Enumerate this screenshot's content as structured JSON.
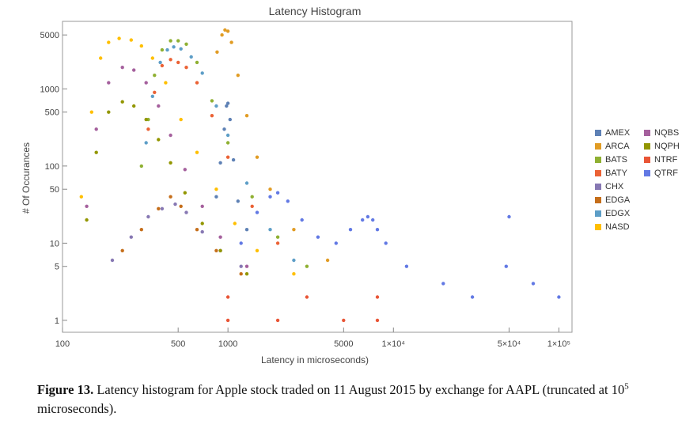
{
  "chart_data": {
    "type": "scatter",
    "title": "Latency Histogram",
    "xlabel": "Latency in microseconds)",
    "ylabel": "# Of Occurances",
    "x_scale": "log",
    "y_scale": "log",
    "xlim": [
      100,
      120000
    ],
    "ylim": [
      0.7,
      7500
    ],
    "x_ticks": [
      {
        "value": 100,
        "label": "100"
      },
      {
        "value": 500,
        "label": "500"
      },
      {
        "value": 1000,
        "label": "1000"
      },
      {
        "value": 5000,
        "label": "5000"
      },
      {
        "value": 10000,
        "label": "1×10⁴"
      },
      {
        "value": 50000,
        "label": "5×10⁴"
      },
      {
        "value": 100000,
        "label": "1×10⁵"
      }
    ],
    "y_ticks": [
      {
        "value": 1,
        "label": "1"
      },
      {
        "value": 5,
        "label": "5"
      },
      {
        "value": 10,
        "label": "10"
      },
      {
        "value": 50,
        "label": "50"
      },
      {
        "value": 100,
        "label": "100"
      },
      {
        "value": 500,
        "label": "500"
      },
      {
        "value": 1000,
        "label": "1000"
      },
      {
        "value": 5000,
        "label": "5000"
      }
    ],
    "grid": false,
    "legend_position": "right",
    "series": [
      {
        "name": "AMEX",
        "color": "#5e81b5",
        "points": [
          [
            850,
            40
          ],
          [
            900,
            110
          ],
          [
            950,
            300
          ],
          [
            980,
            600
          ],
          [
            1000,
            650
          ],
          [
            1030,
            400
          ],
          [
            1080,
            120
          ],
          [
            1150,
            35
          ],
          [
            1300,
            15
          ]
        ]
      },
      {
        "name": "ARCA",
        "color": "#e19c24",
        "points": [
          [
            860,
            3000
          ],
          [
            920,
            5000
          ],
          [
            960,
            5800
          ],
          [
            1000,
            5600
          ],
          [
            1050,
            4000
          ],
          [
            1150,
            1500
          ],
          [
            1300,
            450
          ],
          [
            1500,
            130
          ],
          [
            1800,
            50
          ],
          [
            2500,
            15
          ],
          [
            4000,
            6
          ]
        ]
      },
      {
        "name": "BATS",
        "color": "#8fb032",
        "points": [
          [
            300,
            100
          ],
          [
            330,
            400
          ],
          [
            360,
            1500
          ],
          [
            400,
            3200
          ],
          [
            450,
            4200
          ],
          [
            500,
            4200
          ],
          [
            560,
            3800
          ],
          [
            650,
            2200
          ],
          [
            800,
            700
          ],
          [
            1000,
            200
          ],
          [
            1400,
            40
          ],
          [
            2000,
            12
          ],
          [
            3000,
            5
          ]
        ]
      },
      {
        "name": "BATY",
        "color": "#eb6235",
        "points": [
          [
            330,
            300
          ],
          [
            360,
            900
          ],
          [
            400,
            2000
          ],
          [
            450,
            2400
          ],
          [
            500,
            2200
          ],
          [
            560,
            1900
          ],
          [
            650,
            1200
          ],
          [
            800,
            450
          ],
          [
            1000,
            130
          ],
          [
            1400,
            30
          ],
          [
            2000,
            10
          ]
        ]
      },
      {
        "name": "CHX",
        "color": "#8778b3",
        "points": [
          [
            200,
            6
          ],
          [
            260,
            12
          ],
          [
            330,
            22
          ],
          [
            400,
            28
          ],
          [
            480,
            32
          ],
          [
            560,
            25
          ],
          [
            700,
            14
          ],
          [
            900,
            8
          ],
          [
            1200,
            5
          ]
        ]
      },
      {
        "name": "EDGA",
        "color": "#c56e1a",
        "points": [
          [
            230,
            8
          ],
          [
            300,
            15
          ],
          [
            380,
            28
          ],
          [
            450,
            40
          ],
          [
            520,
            30
          ],
          [
            650,
            15
          ],
          [
            850,
            8
          ],
          [
            1200,
            4
          ]
        ]
      },
      {
        "name": "EDGX",
        "color": "#5d9ec7",
        "points": [
          [
            320,
            200
          ],
          [
            350,
            800
          ],
          [
            390,
            2200
          ],
          [
            430,
            3200
          ],
          [
            470,
            3500
          ],
          [
            520,
            3300
          ],
          [
            600,
            2600
          ],
          [
            700,
            1600
          ],
          [
            850,
            600
          ],
          [
            1000,
            250
          ],
          [
            1300,
            60
          ],
          [
            1800,
            15
          ],
          [
            2500,
            6
          ]
        ]
      },
      {
        "name": "NASD",
        "color": "#ffbf00",
        "points": [
          [
            130,
            40
          ],
          [
            150,
            500
          ],
          [
            170,
            2500
          ],
          [
            190,
            4000
          ],
          [
            220,
            4500
          ],
          [
            260,
            4300
          ],
          [
            300,
            3600
          ],
          [
            350,
            2500
          ],
          [
            420,
            1200
          ],
          [
            520,
            400
          ],
          [
            650,
            150
          ],
          [
            850,
            50
          ],
          [
            1100,
            18
          ],
          [
            1500,
            8
          ],
          [
            2500,
            4
          ]
        ]
      },
      {
        "name": "NQBS",
        "color": "#a5609d",
        "points": [
          [
            140,
            30
          ],
          [
            160,
            300
          ],
          [
            190,
            1200
          ],
          [
            230,
            1900
          ],
          [
            270,
            1750
          ],
          [
            320,
            1200
          ],
          [
            380,
            600
          ],
          [
            450,
            250
          ],
          [
            550,
            90
          ],
          [
            700,
            30
          ],
          [
            900,
            12
          ],
          [
            1300,
            5
          ]
        ]
      },
      {
        "name": "NQPH",
        "color": "#929600",
        "points": [
          [
            140,
            20
          ],
          [
            160,
            150
          ],
          [
            190,
            500
          ],
          [
            230,
            680
          ],
          [
            270,
            600
          ],
          [
            320,
            400
          ],
          [
            380,
            220
          ],
          [
            450,
            110
          ],
          [
            550,
            45
          ],
          [
            700,
            18
          ],
          [
            900,
            8
          ],
          [
            1300,
            4
          ]
        ]
      },
      {
        "name": "NTRF",
        "color": "#e95536",
        "points": [
          [
            1000,
            1
          ],
          [
            2000,
            1
          ],
          [
            5000,
            1
          ],
          [
            8000,
            1
          ],
          [
            1000,
            2
          ],
          [
            3000,
            2
          ],
          [
            8000,
            2
          ]
        ]
      },
      {
        "name": "QTRF",
        "color": "#6279e4",
        "points": [
          [
            1200,
            10
          ],
          [
            1500,
            25
          ],
          [
            1800,
            40
          ],
          [
            2000,
            45
          ],
          [
            2300,
            35
          ],
          [
            2800,
            20
          ],
          [
            3500,
            12
          ],
          [
            4500,
            10
          ],
          [
            5500,
            15
          ],
          [
            6500,
            20
          ],
          [
            7000,
            22
          ],
          [
            7500,
            20
          ],
          [
            8000,
            15
          ],
          [
            9000,
            10
          ],
          [
            12000,
            5
          ],
          [
            20000,
            3
          ],
          [
            30000,
            2
          ],
          [
            48000,
            5
          ],
          [
            50000,
            22
          ],
          [
            70000,
            3
          ],
          [
            100000,
            2
          ]
        ]
      }
    ]
  },
  "legend": {
    "items": [
      "AMEX",
      "ARCA",
      "BATS",
      "BATY",
      "CHX",
      "EDGA",
      "EDGX",
      "NASD",
      "NQBS",
      "NQPH",
      "NTRF",
      "QTRF"
    ]
  },
  "caption": {
    "label": "Figure 13.",
    "text_before": "Latency histogram for Apple stock traded on 11 August 2015 by exchange for AAPL (truncated at 10",
    "superscript": "5",
    "text_after": " microseconds)."
  }
}
